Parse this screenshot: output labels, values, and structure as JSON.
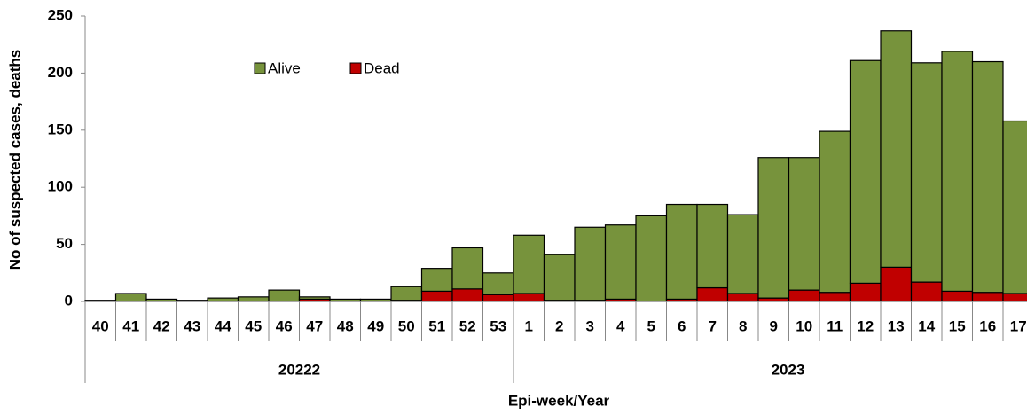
{
  "chart_data": {
    "type": "stacked_bar",
    "y_label": "No of suspected cases, deaths",
    "x_label": "Epi-week/Year",
    "categories": [
      "40",
      "41",
      "42",
      "43",
      "44",
      "45",
      "46",
      "47",
      "48",
      "49",
      "50",
      "51",
      "52",
      "53",
      "1",
      "2",
      "3",
      "4",
      "5",
      "6",
      "7",
      "8",
      "9",
      "10",
      "11",
      "12",
      "13",
      "14",
      "15",
      "16",
      "17"
    ],
    "groups": [
      {
        "label": "20222",
        "span": 14
      },
      {
        "label": "2023",
        "span": 17
      }
    ],
    "series": [
      {
        "name": "Dead",
        "color": "#c00000",
        "values": [
          0,
          0,
          0,
          0,
          0,
          0,
          0,
          2,
          0,
          0,
          1,
          9,
          11,
          6,
          7,
          1,
          1,
          2,
          0,
          2,
          12,
          7,
          3,
          10,
          8,
          16,
          30,
          17,
          9,
          8,
          7
        ]
      },
      {
        "name": "Alive",
        "color": "#77933c",
        "values": [
          1,
          7,
          2,
          1,
          3,
          4,
          10,
          2,
          2,
          2,
          12,
          20,
          36,
          19,
          51,
          40,
          64,
          65,
          75,
          83,
          73,
          69,
          123,
          116,
          141,
          195,
          207,
          192,
          210,
          202,
          151
        ]
      }
    ],
    "legend_order": [
      1,
      0
    ],
    "ylim": [
      0,
      250
    ],
    "yticks": [
      0,
      50,
      100,
      150,
      200,
      250
    ],
    "grid": false
  }
}
